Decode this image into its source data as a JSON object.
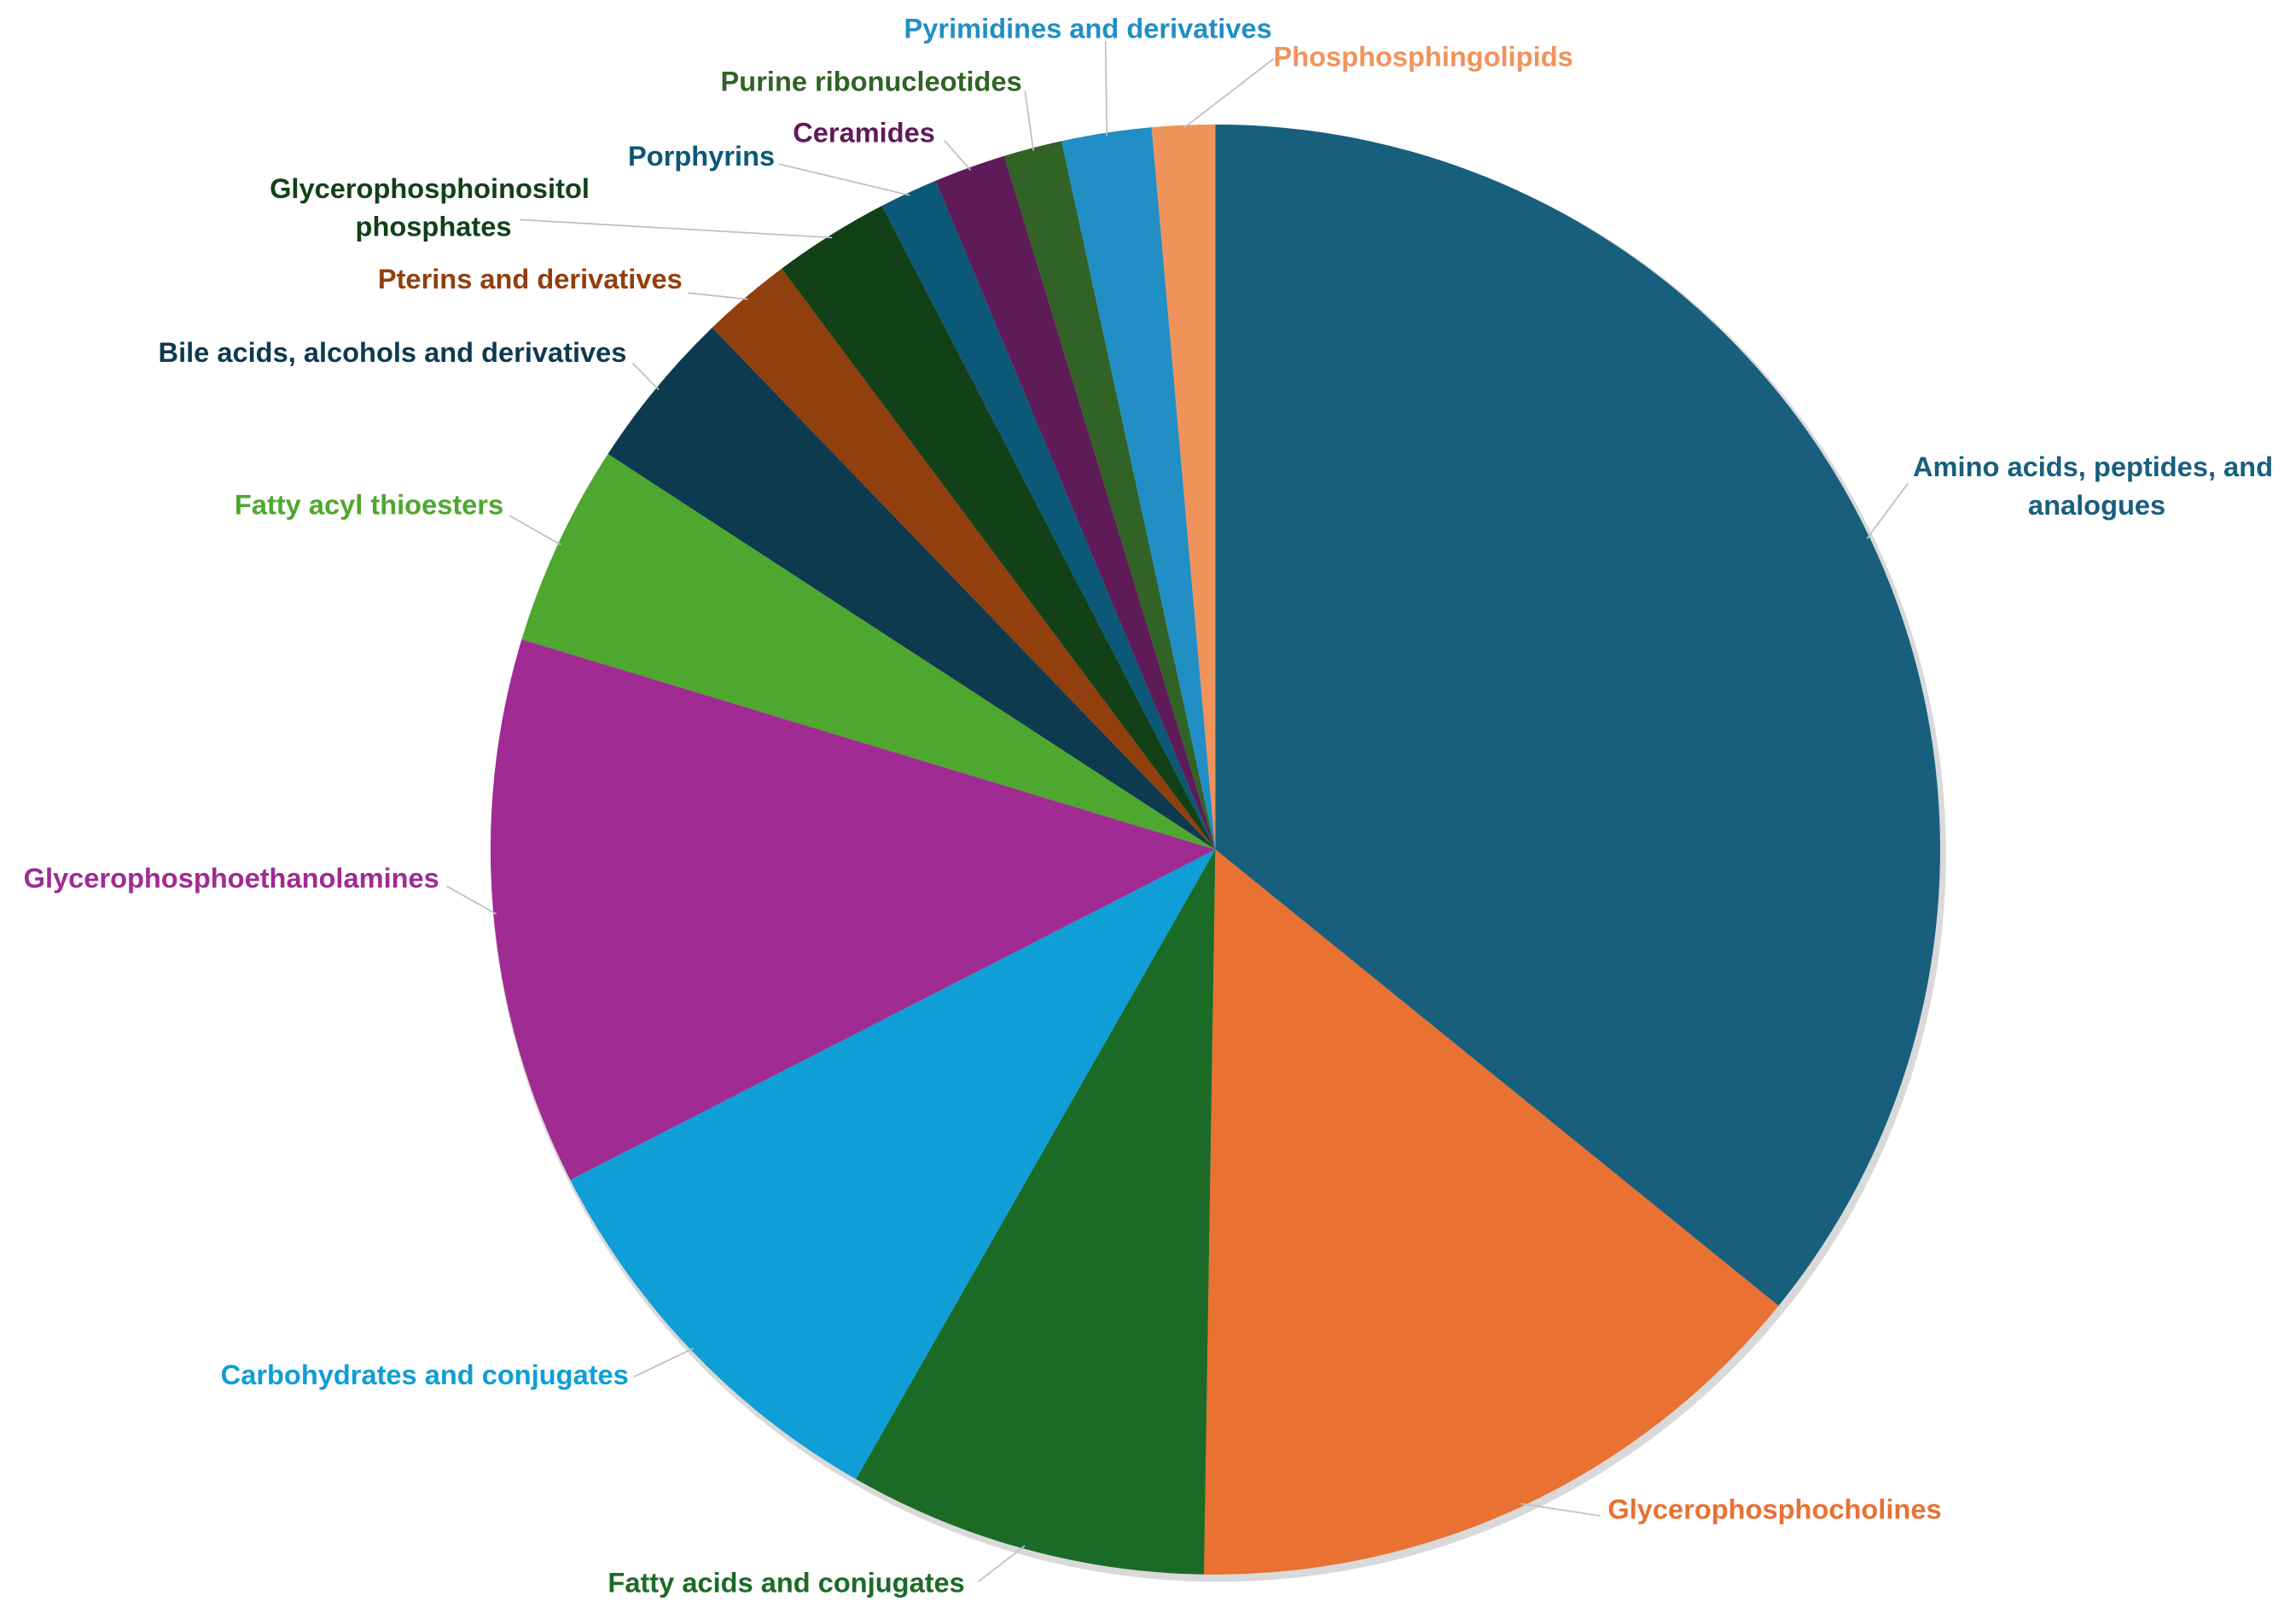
{
  "chart_data": {
    "type": "pie",
    "categories": [
      "Amino acids, peptides, and analogues",
      "Glycerophosphocholines",
      "Fatty acids and conjugates",
      "Carbohydrates and conjugates",
      "Glycerophosphoethanolamines",
      "Fatty acyl thioesters",
      "Bile acids, alcohols and derivatives",
      "Pterins and derivatives",
      "Glycerophosphoinositol phosphates",
      "Porphyrins",
      "Ceramides",
      "Purine ribonucleotides",
      "Pyrimidines and derivatives",
      "Phosphosphingolipids"
    ],
    "values": [
      35.8,
      14.4,
      8.0,
      9.2,
      12.2,
      4.5,
      3.6,
      2.0,
      2.6,
      1.3,
      1.6,
      1.3,
      2.0,
      1.4
    ],
    "colors": [
      "#185F7E",
      "#E97132",
      "#1B6B27",
      "#0F9ED5",
      "#A02B93",
      "#4EA72E",
      "#0E3A50",
      "#923F0E",
      "#124117",
      "#0B5878",
      "#5F1A58",
      "#306325",
      "#218FC5",
      "#F0935B"
    ]
  }
}
